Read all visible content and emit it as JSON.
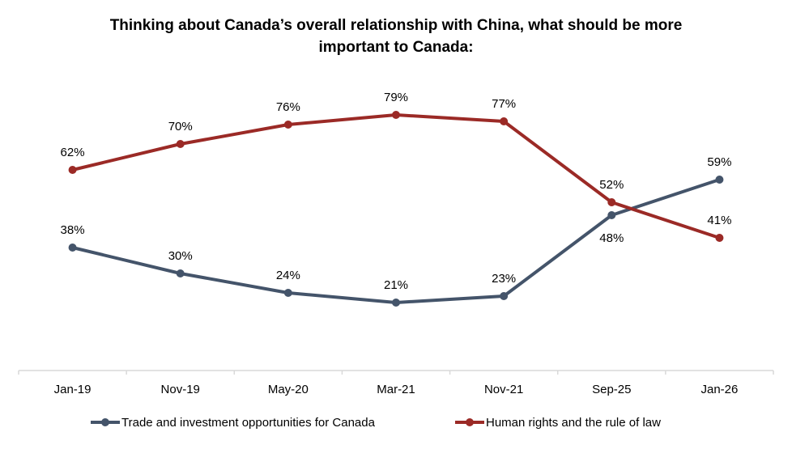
{
  "chart_data": {
    "type": "line",
    "title": "Thinking about Canada’s overall relationship with China, what should be more important to Canada:",
    "title_lines": [
      "Thinking about Canada’s overall relationship with China, what should be more",
      "important to Canada:"
    ],
    "xlabel": "",
    "ylabel": "",
    "categories": [
      "Jan-19",
      "Nov-19",
      "May-20",
      "Mar-21",
      "Nov-21",
      "Sep-25",
      "Jan-26"
    ],
    "ylim": [
      0,
      100
    ],
    "grid": false,
    "legend_position": "bottom",
    "series": [
      {
        "name": "Trade and investment opportunities for Canada",
        "color": "#44546A",
        "values": [
          38,
          30,
          24,
          21,
          23,
          48,
          59
        ],
        "labels": [
          "38%",
          "30%",
          "24%",
          "21%",
          "23%",
          "48%",
          "59%"
        ],
        "label_positions": [
          "above",
          "above",
          "above",
          "above",
          "above",
          "below",
          "above"
        ]
      },
      {
        "name": "Human rights and the rule of law",
        "color": "#9B2A26",
        "values": [
          62,
          70,
          76,
          79,
          77,
          52,
          41
        ],
        "labels": [
          "62%",
          "70%",
          "76%",
          "79%",
          "77%",
          "52%",
          "41%"
        ],
        "label_positions": [
          "above",
          "above",
          "above",
          "above",
          "above",
          "above",
          "above"
        ]
      }
    ]
  }
}
